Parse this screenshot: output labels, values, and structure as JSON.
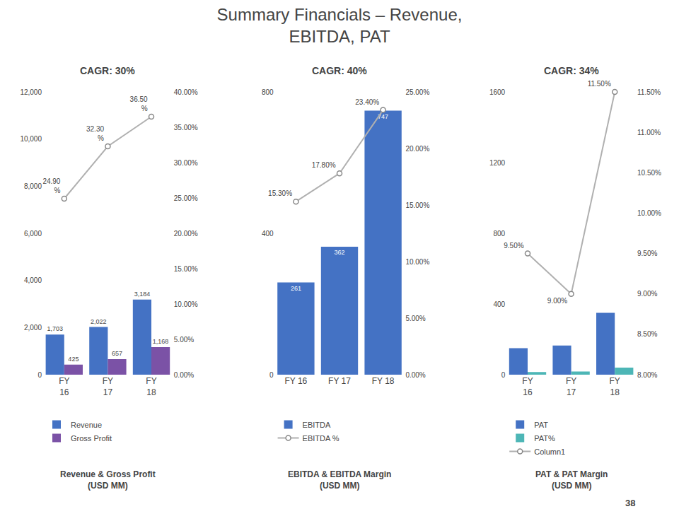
{
  "title": "Summary Financials – Revenue,\nEBITDA, PAT",
  "annotations": [
    "38"
  ],
  "chart_data": [
    {
      "type": "bar",
      "title": "CAGR: 30%",
      "subtitle": "Revenue & Gross Profit\n(USD MM)",
      "categories": [
        "FY\n16",
        "FY\n17",
        "FY\n18"
      ],
      "series": [
        {
          "name": "Revenue",
          "color": "#4472c4",
          "values": [
            1703,
            2022,
            3184
          ],
          "value_labels": [
            "1,703",
            "2,022",
            "3,184"
          ]
        },
        {
          "name": "Gross Profit",
          "color": "#7b52a6",
          "values": [
            425,
            657,
            1168
          ],
          "value_labels": [
            "425",
            "657",
            "1,168"
          ]
        },
        {
          "type": "line",
          "axis": "y2",
          "color": "#b0b0b0",
          "marker": "circle",
          "values": [
            0.249,
            0.323,
            0.365
          ],
          "value_labels": [
            "24.90\n%",
            "32.30\n%",
            "36.50\n%"
          ]
        }
      ],
      "ylim": [
        0,
        12000
      ],
      "yticks": [
        0,
        {
          "value": 2000,
          "label": "2,000"
        },
        {
          "value": 4000,
          "label": "4,000"
        },
        {
          "value": 6000,
          "label": "6,000"
        },
        {
          "value": 8000,
          "label": "8,000"
        },
        {
          "value": 10000,
          "label": "10,000"
        },
        {
          "value": 12000,
          "label": "12,000"
        }
      ],
      "y2lim": [
        0,
        0.4
      ],
      "y2ticks": [
        {
          "value": 0,
          "label": "0.00%"
        },
        {
          "value": 0.05,
          "label": "5.00%"
        },
        {
          "value": 0.1,
          "label": "10.00%"
        },
        {
          "value": 0.15,
          "label": "15.00%"
        },
        {
          "value": 0.2,
          "label": "20.00%"
        },
        {
          "value": 0.25,
          "label": "25.00%"
        },
        {
          "value": 0.3,
          "label": "30.00%"
        },
        {
          "value": 0.35,
          "label": "35.00%"
        },
        {
          "value": 0.4,
          "label": "40.00%"
        }
      ],
      "data_labels": true,
      "grid": false,
      "legend": "bottom"
    },
    {
      "type": "bar",
      "title": "CAGR: 40%",
      "subtitle": "EBITDA & EBITDA Margin\n(USD MM)",
      "categories": [
        "FY 16",
        "FY 17",
        "FY 18"
      ],
      "series": [
        {
          "name": "EBITDA",
          "color": "#4472c4",
          "values": [
            261,
            362,
            747
          ]
        },
        {
          "name": "EBITDA %",
          "type": "line",
          "axis": "y2",
          "color": "#b0b0b0",
          "marker": "circle",
          "values": [
            0.153,
            0.178,
            0.234
          ],
          "value_labels": [
            "15.30%",
            "17.80%",
            "23.40%"
          ]
        }
      ],
      "ylim": [
        0,
        800
      ],
      "yticks": [
        0,
        400,
        800
      ],
      "y2lim": [
        0,
        0.25
      ],
      "y2ticks": [
        {
          "value": 0,
          "label": "0.00%"
        },
        {
          "value": 0.05,
          "label": "5.00%"
        },
        {
          "value": 0.1,
          "label": "10.00%"
        },
        {
          "value": 0.15,
          "label": "15.00%"
        },
        {
          "value": 0.2,
          "label": "20.00%"
        },
        {
          "value": 0.25,
          "label": "25.00%"
        }
      ],
      "data_labels": true,
      "grid": false,
      "legend": "bottom"
    },
    {
      "type": "bar",
      "title": "CAGR: 34%",
      "subtitle": "PAT & PAT Margin\n(USD MM)",
      "categories": [
        "FY\n16",
        "FY\n17",
        "FY\n18"
      ],
      "series": [
        {
          "name": "PAT",
          "color": "#4472c4",
          "values": [
            150,
            165,
            350
          ]
        },
        {
          "name": "PAT%",
          "color": "#4db6b6",
          "values": [
            15,
            18,
            40
          ]
        },
        {
          "name": "Column1",
          "type": "line",
          "axis": "y2",
          "color": "#b0b0b0",
          "marker": "circle",
          "values": [
            0.095,
            0.09,
            0.115
          ],
          "value_labels": [
            "9.50%",
            "9.00%",
            "11.50%"
          ],
          "data_labels": true
        }
      ],
      "ylim": [
        0,
        1600
      ],
      "yticks": [
        0,
        400,
        800,
        1200,
        1600
      ],
      "y2lim": [
        0.08,
        0.115
      ],
      "y2ticks": [
        {
          "value": 0.08,
          "label": "8.00%"
        },
        {
          "value": 0.085,
          "label": "8.50%"
        },
        {
          "value": 0.09,
          "label": "9.00%"
        },
        {
          "value": 0.095,
          "label": "9.50%"
        },
        {
          "value": 0.1,
          "label": "10.00%"
        },
        {
          "value": 0.105,
          "label": "10.50%"
        },
        {
          "value": 0.11,
          "label": "11.00%"
        },
        {
          "value": 0.115,
          "label": "11.50%"
        }
      ],
      "data_labels": false,
      "grid": false,
      "legend": "bottom"
    }
  ]
}
